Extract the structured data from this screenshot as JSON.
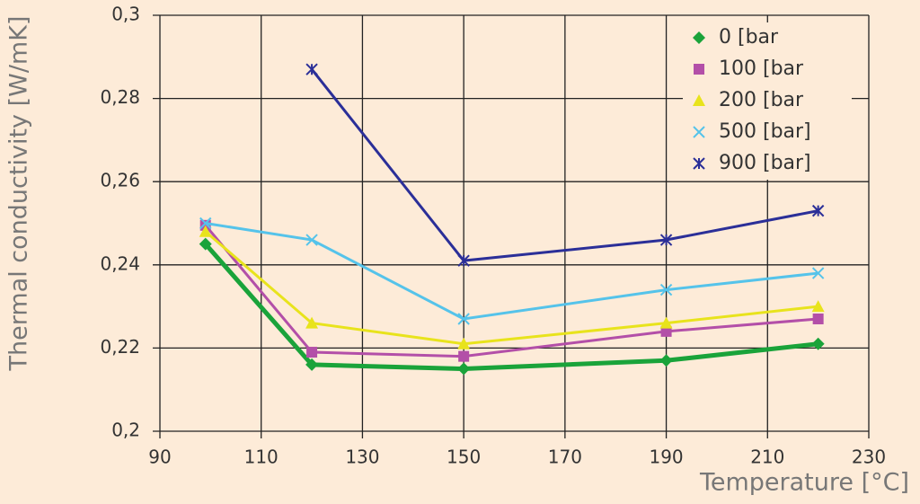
{
  "chart_data": {
    "type": "line",
    "y_label": "Thermal conductivity [W/mK]",
    "x_label": "Temperature [°C]",
    "x": [
      99,
      120,
      150,
      190,
      220
    ],
    "series": [
      {
        "name": "0 [bar",
        "color": "#1aa33a",
        "marker": "diamond",
        "values": [
          0.245,
          0.216,
          0.215,
          0.217,
          0.221
        ]
      },
      {
        "name": "100 [bar",
        "color": "#b34fa8",
        "marker": "square",
        "values": [
          0.2495,
          0.219,
          0.218,
          0.224,
          0.227
        ]
      },
      {
        "name": "200 [bar",
        "color": "#e8e31c",
        "marker": "triangle",
        "values": [
          0.248,
          0.226,
          0.221,
          0.226,
          0.23
        ]
      },
      {
        "name": "500 [bar]",
        "color": "#55c3ea",
        "marker": "x",
        "values": [
          0.25,
          0.246,
          0.227,
          0.234,
          0.238
        ]
      },
      {
        "name": "900 [bar]",
        "color": "#2b2f98",
        "marker": "star",
        "values": [
          null,
          0.287,
          0.241,
          0.246,
          0.253
        ]
      }
    ],
    "xlim": [
      90,
      230
    ],
    "xticks": [
      90,
      110,
      130,
      150,
      170,
      190,
      210,
      230
    ],
    "ylim": [
      0.2,
      0.3
    ],
    "yticks": [
      {
        "value": 0.2,
        "label": "0,2"
      },
      {
        "value": 0.22,
        "label": "0,22"
      },
      {
        "value": 0.24,
        "label": "0,24"
      },
      {
        "value": 0.26,
        "label": "0,26"
      },
      {
        "value": 0.28,
        "label": "0,28"
      },
      {
        "value": 0.3,
        "label": "0,3"
      }
    ],
    "grid": true,
    "legend": "top-right"
  }
}
